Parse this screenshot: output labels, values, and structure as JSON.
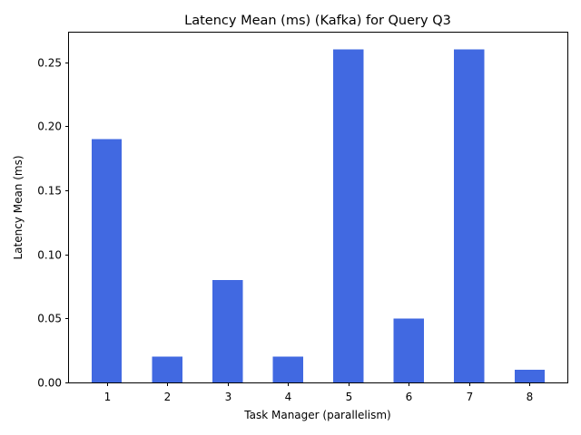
{
  "chart_data": {
    "type": "bar",
    "title": "Latency Mean (ms) (Kafka) for Query Q3",
    "xlabel": "Task Manager (parallelism)",
    "ylabel": "Latency Mean (ms)",
    "categories": [
      "1",
      "2",
      "3",
      "4",
      "5",
      "6",
      "7",
      "8"
    ],
    "series": [
      {
        "values": [
          0.19,
          0.02,
          0.08,
          0.02,
          0.26,
          0.05,
          0.26,
          0.01
        ]
      }
    ],
    "ylim": [
      0,
      0.273
    ],
    "yticks": [
      "0.00",
      "0.05",
      "0.10",
      "0.15",
      "0.20",
      "0.25"
    ],
    "grid": false,
    "legend": "none",
    "bar_color": "#4169e1"
  }
}
